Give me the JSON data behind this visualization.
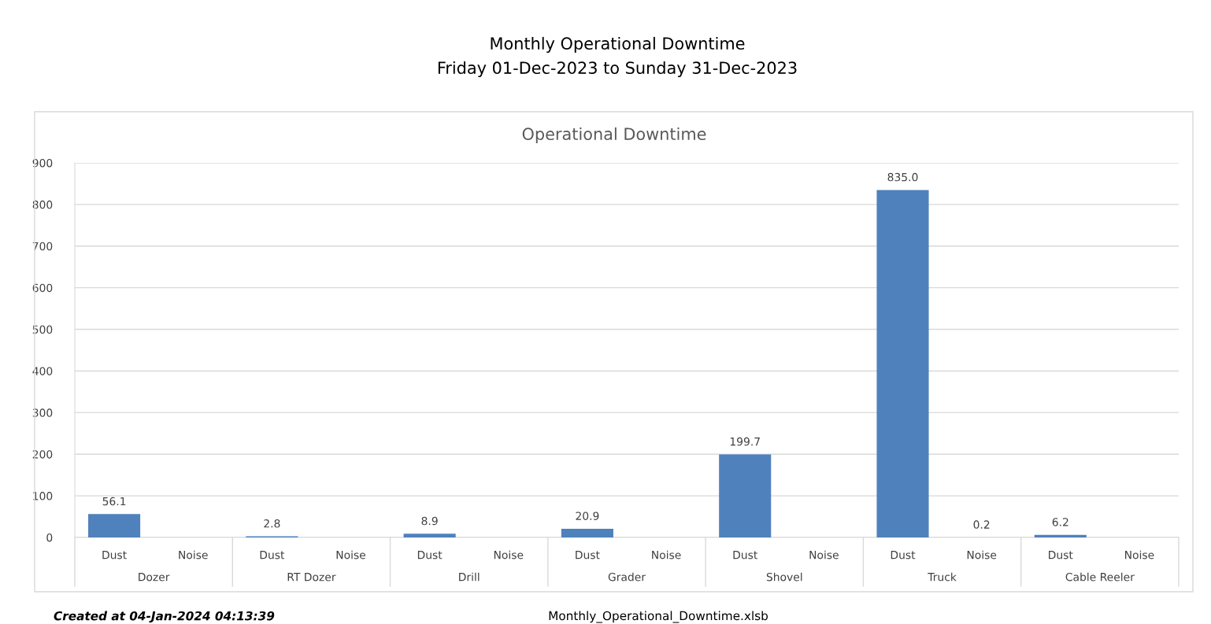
{
  "chart_data": {
    "type": "bar",
    "title": "Monthly Operational Downtime",
    "subtitle": "Friday 01-Dec-2023 to Sunday 31-Dec-2023",
    "categories": [
      "Dust",
      "Noise",
      "Dust",
      "Noise",
      "Dust",
      "Noise",
      "Dust",
      "Noise",
      "Dust",
      "Noise",
      "Dust",
      "Noise",
      "Dust",
      "Noise"
    ],
    "values": [
      56.1,
      0,
      2.8,
      0,
      8.9,
      0,
      20.9,
      0,
      199.7,
      0,
      835.0,
      0.2,
      6.2,
      0
    ],
    "value_labels": [
      "56.1",
      null,
      "2.8",
      null,
      "8.9",
      null,
      "20.9",
      null,
      "199.7",
      null,
      "835.0",
      "0.2",
      "6.2",
      null
    ],
    "color": "#4f81bd",
    "ylim": [
      0,
      900
    ],
    "yticks": [
      0,
      100,
      200,
      300,
      400,
      500,
      600,
      700,
      800,
      900
    ],
    "grid": "y",
    "legend": false,
    "annotations": [
      "Operational Downtime",
      "Dozer",
      "RT Dozer",
      "Drill",
      "Grader",
      "Shovel",
      "Truck",
      "Cable Reeler",
      "Created at 04-Jan-2024 04:13:39",
      "Monthly_Operational_Downtime.xlsb"
    ]
  }
}
